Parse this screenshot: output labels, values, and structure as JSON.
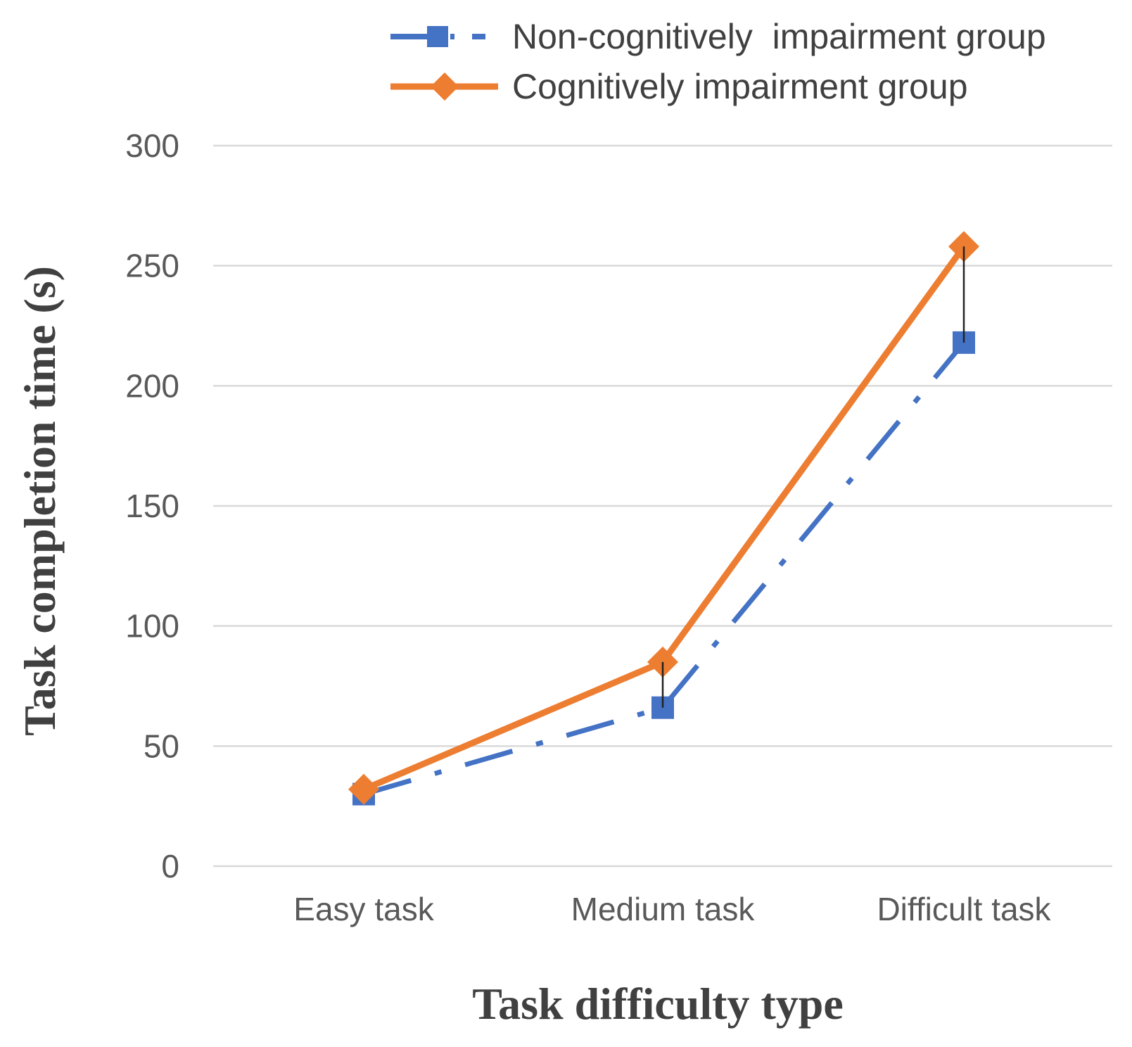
{
  "chart_data": {
    "type": "line",
    "xlabel": "Task difficulty type",
    "ylabel": "Task completion time (s)",
    "ylim": [
      0,
      300
    ],
    "yticks": [
      0,
      50,
      100,
      150,
      200,
      250,
      300
    ],
    "grid": true,
    "legend_position": "top-right",
    "categories": [
      "Easy task",
      "Medium task",
      "Difficult task"
    ],
    "series": [
      {
        "name": "Non-cognitively  impairment group",
        "values": [
          30,
          66,
          218
        ],
        "color": "#4472c4",
        "marker": "square",
        "line_style": "dash-dot"
      },
      {
        "name": "Cognitively impairment group",
        "values": [
          32,
          85,
          258
        ],
        "color": "#ed7d31",
        "marker": "diamond",
        "line_style": "solid"
      }
    ],
    "error_bars": [
      {
        "category": "Medium task",
        "from": 66,
        "to": 85
      },
      {
        "category": "Difficult task",
        "from": 218,
        "to": 258
      }
    ]
  }
}
